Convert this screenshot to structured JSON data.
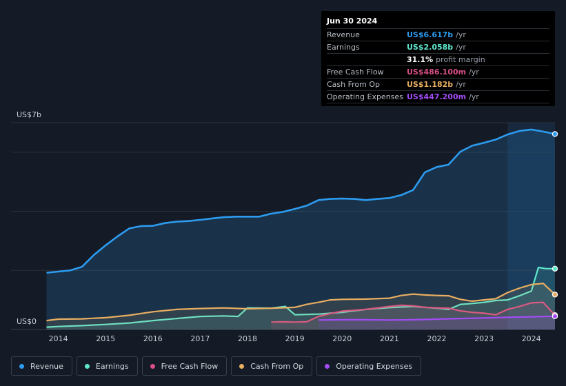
{
  "colors": {
    "revenue": "#2d9cf0",
    "earnings": "#5ee8cd",
    "fcf": "#d94f86",
    "cfo": "#e9ae61",
    "opex": "#a24cf5"
  },
  "tooltip": {
    "date": "Jun 30 2024",
    "rows": [
      {
        "label": "Revenue",
        "value": "US$6.617b",
        "unit": "/yr",
        "color": "#2d9cf0"
      },
      {
        "label": "Earnings",
        "value": "US$2.058b",
        "unit": "/yr",
        "color": "#5ee8cd"
      },
      {
        "label": "",
        "value": "31.1%",
        "unit": "profit margin",
        "color": "#ffffff"
      },
      {
        "label": "Free Cash Flow",
        "value": "US$486.100m",
        "unit": "/yr",
        "color": "#d94f86"
      },
      {
        "label": "Cash From Op",
        "value": "US$1.182b",
        "unit": "/yr",
        "color": "#e9ae61"
      },
      {
        "label": "Operating Expenses",
        "value": "US$447.200m",
        "unit": "/yr",
        "color": "#a24cf5"
      }
    ]
  },
  "chart_data": {
    "type": "line",
    "y_top_label": "US$7b",
    "y_bottom_label": "US$0",
    "ylim": [
      0,
      7
    ],
    "xlim": [
      2013.0,
      2024.5
    ],
    "x_ticks": [
      2014,
      2015,
      2016,
      2017,
      2018,
      2019,
      2020,
      2021,
      2022,
      2023,
      2024
    ],
    "x_tick_labels": [
      "2014",
      "2015",
      "2016",
      "2017",
      "2018",
      "2019",
      "2020",
      "2021",
      "2022",
      "2023",
      "2024"
    ],
    "series": [
      {
        "name": "Revenue",
        "key": "revenue",
        "area": true,
        "x": [
          2013.75,
          2014.0,
          2014.25,
          2014.5,
          2014.75,
          2015.0,
          2015.25,
          2015.5,
          2015.75,
          2016.0,
          2016.25,
          2016.5,
          2016.75,
          2017.0,
          2017.25,
          2017.5,
          2017.75,
          2018.0,
          2018.25,
          2018.5,
          2018.75,
          2019.0,
          2019.25,
          2019.5,
          2019.75,
          2020.0,
          2020.25,
          2020.5,
          2020.75,
          2021.0,
          2021.25,
          2021.5,
          2021.75,
          2022.0,
          2022.25,
          2022.5,
          2022.75,
          2023.0,
          2023.25,
          2023.5,
          2023.75,
          2024.0,
          2024.25,
          2024.5
        ],
        "values": [
          1.92,
          1.96,
          2.0,
          2.12,
          2.52,
          2.85,
          3.15,
          3.42,
          3.5,
          3.51,
          3.6,
          3.65,
          3.67,
          3.71,
          3.76,
          3.8,
          3.82,
          3.82,
          3.82,
          3.92,
          3.98,
          4.08,
          4.19,
          4.38,
          4.42,
          4.43,
          4.42,
          4.38,
          4.42,
          4.45,
          4.55,
          4.72,
          5.32,
          5.5,
          5.58,
          6.02,
          6.22,
          6.32,
          6.43,
          6.6,
          6.72,
          6.77,
          6.7,
          6.617
        ]
      },
      {
        "name": "Earnings",
        "key": "earnings",
        "area": true,
        "x": [
          2013.75,
          2014.0,
          2014.5,
          2015.0,
          2015.5,
          2016.0,
          2016.5,
          2017.0,
          2017.5,
          2017.8,
          2018.0,
          2018.5,
          2018.8,
          2019.0,
          2019.5,
          2020.0,
          2020.5,
          2021.0,
          2021.5,
          2022.0,
          2022.25,
          2022.5,
          2022.75,
          2023.0,
          2023.25,
          2023.5,
          2023.75,
          2024.0,
          2024.15,
          2024.3,
          2024.5
        ],
        "values": [
          0.08,
          0.1,
          0.13,
          0.17,
          0.22,
          0.3,
          0.37,
          0.44,
          0.46,
          0.44,
          0.73,
          0.72,
          0.78,
          0.5,
          0.52,
          0.58,
          0.68,
          0.74,
          0.78,
          0.72,
          0.68,
          0.85,
          0.88,
          0.92,
          0.98,
          1.0,
          1.14,
          1.3,
          2.1,
          2.06,
          2.058
        ]
      },
      {
        "name": "Free Cash Flow",
        "key": "fcf",
        "area": true,
        "x": [
          2018.5,
          2018.75,
          2019.0,
          2019.25,
          2019.5,
          2019.75,
          2020.0,
          2020.5,
          2021.0,
          2021.25,
          2021.5,
          2021.75,
          2022.0,
          2022.25,
          2022.5,
          2022.75,
          2023.0,
          2023.25,
          2023.5,
          2023.75,
          2024.0,
          2024.25,
          2024.5
        ],
        "values": [
          0.25,
          0.26,
          0.25,
          0.26,
          0.44,
          0.54,
          0.62,
          0.68,
          0.78,
          0.82,
          0.8,
          0.75,
          0.73,
          0.72,
          0.63,
          0.58,
          0.55,
          0.5,
          0.68,
          0.78,
          0.9,
          0.92,
          0.486
        ]
      },
      {
        "name": "Cash From Op",
        "key": "cfo",
        "area": true,
        "x": [
          2013.75,
          2014.0,
          2014.5,
          2015.0,
          2015.5,
          2016.0,
          2016.5,
          2017.0,
          2017.5,
          2018.0,
          2018.5,
          2019.0,
          2019.25,
          2019.5,
          2019.75,
          2020.0,
          2020.5,
          2021.0,
          2021.25,
          2021.5,
          2021.75,
          2022.0,
          2022.25,
          2022.5,
          2022.75,
          2023.0,
          2023.25,
          2023.5,
          2023.75,
          2024.0,
          2024.25,
          2024.5
        ],
        "values": [
          0.3,
          0.35,
          0.36,
          0.4,
          0.48,
          0.6,
          0.68,
          0.71,
          0.73,
          0.7,
          0.72,
          0.75,
          0.85,
          0.92,
          1.0,
          1.02,
          1.03,
          1.06,
          1.15,
          1.2,
          1.17,
          1.15,
          1.14,
          1.02,
          0.96,
          1.0,
          1.04,
          1.25,
          1.4,
          1.52,
          1.56,
          1.182
        ]
      },
      {
        "name": "Operating Expenses",
        "key": "opex",
        "area": true,
        "x": [
          2019.5,
          2020.0,
          2020.5,
          2021.0,
          2021.5,
          2022.0,
          2022.5,
          2023.0,
          2023.5,
          2024.0,
          2024.5
        ],
        "values": [
          0.32,
          0.33,
          0.33,
          0.32,
          0.33,
          0.35,
          0.37,
          0.39,
          0.41,
          0.43,
          0.4472
        ]
      }
    ],
    "forecast_region_start": 2023.5
  },
  "legend": [
    {
      "label": "Revenue",
      "key": "revenue"
    },
    {
      "label": "Earnings",
      "key": "earnings"
    },
    {
      "label": "Free Cash Flow",
      "key": "fcf"
    },
    {
      "label": "Cash From Op",
      "key": "cfo"
    },
    {
      "label": "Operating Expenses",
      "key": "opex"
    }
  ]
}
